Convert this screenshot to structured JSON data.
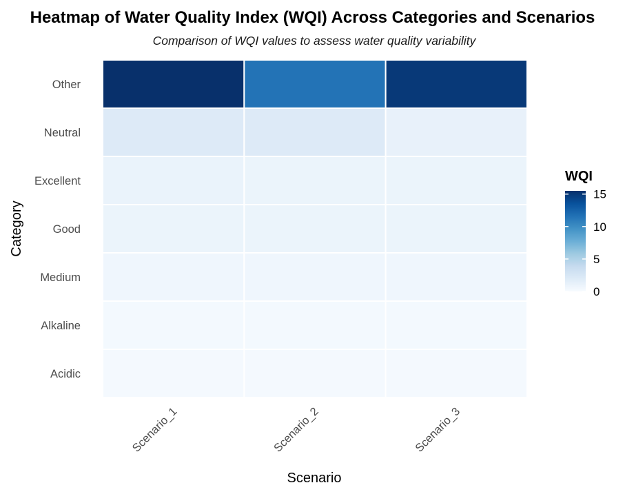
{
  "chart_data": {
    "type": "heatmap",
    "title": "Heatmap of Water Quality Index (WQI) Across Categories and Scenarios",
    "subtitle": "Comparison of WQI values to assess water quality variability",
    "xlabel": "Scenario",
    "ylabel": "Category",
    "x_categories": [
      "Scenario_1",
      "Scenario_2",
      "Scenario_3"
    ],
    "y_categories": [
      "Acidic",
      "Alkaline",
      "Medium",
      "Good",
      "Excellent",
      "Neutral",
      "Other"
    ],
    "values": [
      [
        0.2,
        0.2,
        0.2
      ],
      [
        0.3,
        0.3,
        0.3
      ],
      [
        0.6,
        0.6,
        0.6
      ],
      [
        0.9,
        0.9,
        0.9
      ],
      [
        1.0,
        0.9,
        0.9
      ],
      [
        2.0,
        2.0,
        1.2
      ],
      [
        15.5,
        11.5,
        15.0
      ]
    ],
    "colorbar": {
      "title": "WQI",
      "range": [
        0,
        15.5
      ],
      "ticks": [
        0,
        5,
        10,
        15
      ],
      "low_color": "#f7fbff",
      "high_color": "#08306b"
    },
    "grid": false,
    "legend_position": "right"
  }
}
